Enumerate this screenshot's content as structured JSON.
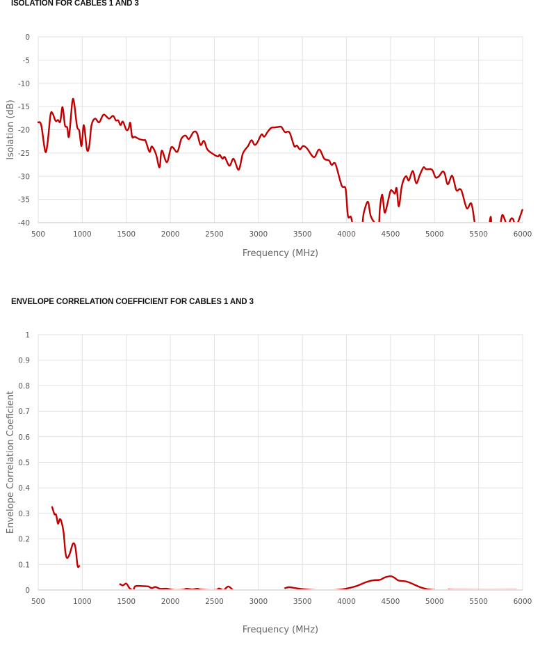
{
  "chart_data": [
    {
      "type": "line",
      "title": "ISOLATION FOR CABLES 1 AND 3",
      "xlabel": "Frequency (MHz)",
      "ylabel": "Isolation (dB)",
      "xlim": [
        500,
        6000
      ],
      "ylim": [
        -40,
        0
      ],
      "xticks": [
        500,
        1000,
        1500,
        2000,
        2500,
        3000,
        3500,
        4000,
        4500,
        5000,
        5500,
        6000
      ],
      "yticks": [
        0,
        -5,
        -10,
        -15,
        -20,
        -25,
        -30,
        -35,
        -40
      ],
      "grid": true,
      "color": "#c00000",
      "series": [
        {
          "segments": [
            [
              [
                500,
                -18.4
              ],
              [
                534,
                -19
              ],
              [
                579,
                -24.6
              ],
              [
                605,
                -23
              ],
              [
                640,
                -16.75
              ],
              [
                666,
                -16.6
              ],
              [
                697,
                -18.1
              ],
              [
                724,
                -17.9
              ],
              [
                750,
                -18.25
              ],
              [
                776,
                -15.1
              ],
              [
                803,
                -19
              ],
              [
                829,
                -19.5
              ],
              [
                850,
                -21.4
              ],
              [
                887,
                -14
              ],
              [
                908,
                -14.25
              ],
              [
                940,
                -19.25
              ],
              [
                966,
                -20.25
              ],
              [
                992,
                -23.5
              ],
              [
                1018,
                -19
              ],
              [
                1053,
                -24.25
              ],
              [
                1079,
                -23.5
              ],
              [
                1105,
                -19
              ],
              [
                1145,
                -17.6
              ],
              [
                1192,
                -18.4
              ],
              [
                1242,
                -16.75
              ],
              [
                1303,
                -17.6
              ],
              [
                1350,
                -17
              ],
              [
                1382,
                -18
              ],
              [
                1408,
                -18
              ],
              [
                1434,
                -19
              ],
              [
                1461,
                -18.25
              ],
              [
                1500,
                -20
              ],
              [
                1526,
                -19.75
              ],
              [
                1545,
                -18.5
              ],
              [
                1566,
                -21.5
              ],
              [
                1597,
                -21.5
              ],
              [
                1645,
                -22
              ],
              [
                1698,
                -22.25
              ],
              [
                1719,
                -22.4
              ],
              [
                1763,
                -24.75
              ],
              [
                1790,
                -23.6
              ],
              [
                1837,
                -25.25
              ],
              [
                1877,
                -28.1
              ],
              [
                1903,
                -24.5
              ],
              [
                1961,
                -27
              ],
              [
                2013,
                -23.75
              ],
              [
                2079,
                -24.75
              ],
              [
                2124,
                -22
              ],
              [
                2171,
                -21.25
              ],
              [
                2211,
                -22
              ],
              [
                2263,
                -20.5
              ],
              [
                2303,
                -20.75
              ],
              [
                2342,
                -23.25
              ],
              [
                2382,
                -22.4
              ],
              [
                2421,
                -24.25
              ],
              [
                2487,
                -25.25
              ],
              [
                2540,
                -25.75
              ],
              [
                2561,
                -25.4
              ],
              [
                2592,
                -26.25
              ],
              [
                2618,
                -25.9
              ],
              [
                2671,
                -27.75
              ],
              [
                2718,
                -26.25
              ],
              [
                2776,
                -28.6
              ],
              [
                2824,
                -25.1
              ],
              [
                2882,
                -23.5
              ],
              [
                2921,
                -22.25
              ],
              [
                2956,
                -23.25
              ],
              [
                2987,
                -22.75
              ],
              [
                3035,
                -21
              ],
              [
                3066,
                -21.5
              ],
              [
                3106,
                -20.4
              ],
              [
                3145,
                -19.6
              ],
              [
                3185,
                -19.5
              ],
              [
                3224,
                -19.4
              ],
              [
                3261,
                -19.4
              ],
              [
                3301,
                -20.5
              ],
              [
                3353,
                -20.6
              ],
              [
                3406,
                -23.5
              ],
              [
                3437,
                -23.4
              ],
              [
                3472,
                -24.25
              ],
              [
                3506,
                -23.5
              ],
              [
                3551,
                -24
              ],
              [
                3630,
                -25.9
              ],
              [
                3690,
                -24.25
              ],
              [
                3748,
                -26.25
              ],
              [
                3801,
                -26.6
              ],
              [
                3832,
                -27.6
              ],
              [
                3874,
                -27.35
              ],
              [
                3945,
                -32
              ],
              [
                3990,
                -32.75
              ],
              [
                4016,
                -38.5
              ],
              [
                4050,
                -38.75
              ],
              [
                4077,
                -41
              ],
              [
                4098,
                -40
              ],
              [
                4120,
                -41.5
              ],
              [
                4174,
                -41
              ],
              [
                4195,
                -38
              ],
              [
                4243,
                -35.5
              ],
              [
                4274,
                -38.5
              ],
              [
                4327,
                -40.25
              ],
              [
                4366,
                -41
              ],
              [
                4379,
                -37
              ],
              [
                4406,
                -34
              ],
              [
                4432,
                -37.75
              ],
              [
                4458,
                -36.5
              ],
              [
                4498,
                -33.25
              ],
              [
                4524,
                -33.25
              ],
              [
                4550,
                -33.75
              ],
              [
                4569,
                -32.6
              ],
              [
                4595,
                -36.5
              ],
              [
                4629,
                -32
              ],
              [
                4674,
                -30
              ],
              [
                4708,
                -30.9
              ],
              [
                4753,
                -28.9
              ],
              [
                4792,
                -31.5
              ],
              [
                4832,
                -29.75
              ],
              [
                4874,
                -28.1
              ],
              [
                4905,
                -28.5
              ],
              [
                4971,
                -28.6
              ],
              [
                5011,
                -30.25
              ],
              [
                5050,
                -30
              ],
              [
                5090,
                -29
              ],
              [
                5116,
                -29.5
              ],
              [
                5150,
                -31.75
              ],
              [
                5200,
                -29.9
              ],
              [
                5247,
                -33
              ],
              [
                5287,
                -32.75
              ],
              [
                5313,
                -33.5
              ],
              [
                5366,
                -36.9
              ],
              [
                5418,
                -35.9
              ],
              [
                5458,
                -40.25
              ],
              [
                5484,
                -42
              ],
              [
                5600,
                -42
              ],
              [
                5636,
                -38.75
              ],
              [
                5655,
                -41
              ],
              [
                5735,
                -41
              ],
              [
                5768,
                -38.4
              ],
              [
                5800,
                -39.5
              ],
              [
                5826,
                -41
              ],
              [
                5865,
                -39.25
              ],
              [
                5892,
                -39.25
              ],
              [
                5926,
                -40.75
              ],
              [
                5997,
                -37.25
              ]
            ]
          ]
        }
      ]
    },
    {
      "type": "line",
      "title": "ENVELOPE CORRELATION COEFFICIENT FOR CABLES 1 AND 3",
      "xlabel": "Frequency (MHz)",
      "ylabel": "Envelope Correlation Coeficient",
      "xlim": [
        500,
        6000
      ],
      "ylim": [
        0,
        1
      ],
      "xticks": [
        500,
        1000,
        1500,
        2000,
        2500,
        3000,
        3500,
        4000,
        4500,
        5000,
        5500,
        6000
      ],
      "yticks": [
        0,
        0.1,
        0.2,
        0.3,
        0.4,
        0.5,
        0.6,
        0.7,
        0.8,
        0.9,
        1
      ],
      "grid": true,
      "color": "#c00000",
      "series": [
        {
          "segments": [
            [
              [
                658,
                0.325
              ],
              [
                684,
                0.297
              ],
              [
                703,
                0.295
              ],
              [
                724,
                0.26
              ],
              [
                745,
                0.277
              ],
              [
                763,
                0.268
              ],
              [
                789,
                0.223
              ],
              [
                808,
                0.15
              ],
              [
                829,
                0.125
              ],
              [
                861,
                0.145
              ],
              [
                895,
                0.182
              ],
              [
                921,
                0.168
              ],
              [
                947,
                0.095
              ],
              [
                966,
                0.094
              ]
            ],
            [
              [
                1429,
                0.023
              ],
              [
                1461,
                0.018
              ],
              [
                1500,
                0.025
              ],
              [
                1540,
                0.006
              ],
              [
                1579,
                0
              ],
              [
                1605,
                0.015
              ],
              [
                1698,
                0.015
              ],
              [
                1750,
                0.014
              ],
              [
                1790,
                0.007
              ],
              [
                1829,
                0.012
              ],
              [
                1882,
                0.005
              ],
              [
                1961,
                0.005
              ],
              [
                2040,
                0
              ],
              [
                2145,
                0.001
              ],
              [
                2184,
                0.005
              ],
              [
                2250,
                0.002
              ],
              [
                2308,
                0.005
              ],
              [
                2355,
                0.001
              ],
              [
                2513,
                0
              ],
              [
                2553,
                0.006
              ],
              [
                2605,
                0
              ],
              [
                2658,
                0.014
              ],
              [
                2706,
                0.001
              ]
            ],
            [
              [
                3303,
                0.0074
              ],
              [
                3350,
                0.011
              ],
              [
                3434,
                0.0065
              ],
              [
                3618,
                0
              ],
              [
                3882,
                0
              ],
              [
                4013,
                0.0065
              ],
              [
                4118,
                0.016
              ],
              [
                4224,
                0.031
              ],
              [
                4303,
                0.038
              ],
              [
                4382,
                0.04
              ],
              [
                4434,
                0.049
              ],
              [
                4500,
                0.054
              ],
              [
                4540,
                0.049
              ],
              [
                4592,
                0.037
              ],
              [
                4671,
                0.034
              ],
              [
                4724,
                0.028
              ],
              [
                4829,
                0.012
              ],
              [
                4908,
                0.004
              ],
              [
                5000,
                0
              ]
            ],
            [
              [
                5158,
                0.001
              ],
              [
                5277,
                0
              ],
              [
                5929,
                0
              ]
            ]
          ]
        }
      ]
    }
  ]
}
